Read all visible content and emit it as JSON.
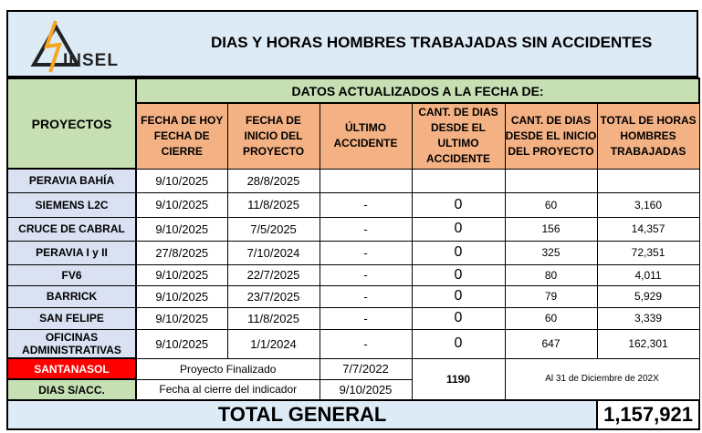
{
  "header": {
    "logo_text": "INSEL",
    "title": "DIAS Y HORAS HOMBRES TRABAJADAS SIN ACCIDENTES"
  },
  "table": {
    "proyectos_label": "PROYECTOS",
    "datos_label": "DATOS ACTUALIZADOS A LA FECHA DE:",
    "columns": [
      "FECHA DE HOY FECHA DE CIERRE",
      "FECHA DE INICIO DEL PROYECTO",
      "ÚLTIMO ACCIDENTE",
      "CANT. DE DIAS DESDE EL ULTIMO ACCIDENTE",
      "CANT. DE DIAS DESDE EL INICIO DEL PROYECTO",
      "TOTAL DE HORAS HOMBRES TRABAJADAS"
    ],
    "rows": [
      [
        "PERAVIA BAHÍA",
        "9/10/2025",
        "28/8/2025",
        "",
        "",
        "",
        ""
      ],
      [
        "SIEMENS L2C",
        "9/10/2025",
        "11/8/2025",
        "-",
        "0",
        "60",
        "3,160"
      ],
      [
        "CRUCE DE CABRAL",
        "9/10/2025",
        "7/5/2025",
        "-",
        "0",
        "156",
        "14,357"
      ],
      [
        "PERAVIA I y II",
        "27/8/2025",
        "7/10/2024",
        "-",
        "0",
        "325",
        "72,351"
      ],
      [
        "FV6",
        "9/10/2025",
        "22/7/2025",
        "-",
        "0",
        "80",
        "4,011"
      ],
      [
        "BARRICK",
        "9/10/2025",
        "23/7/2025",
        "-",
        "0",
        "79",
        "5,929"
      ],
      [
        "SAN FELIPE",
        "9/10/2025",
        "11/8/2025",
        "-",
        "0",
        "60",
        "3,339"
      ],
      [
        "OFICINAS ADMINISTRATIVAS",
        "9/10/2025",
        "1/1/2024",
        "-",
        "0",
        "647",
        "162,301"
      ]
    ]
  },
  "footer": {
    "santanasol": "SANTANASOL",
    "finalizado": "Proyecto Finalizado",
    "fin_date": "7/7/2022",
    "dias_label": "DIAS S/ACC.",
    "cierre_label": "Fecha al cierre del indicador",
    "cierre_date": "9/10/2025",
    "dias_value": "1190",
    "al_label": "Al 31 de Diciembre de 202X",
    "total_label": "TOTAL GENERAL",
    "total_value": "1,157,921"
  },
  "colors": {
    "green": "#c6e0b4",
    "orange": "#f4b183",
    "blue": "#d9e1f2",
    "red": "#ff0000"
  }
}
